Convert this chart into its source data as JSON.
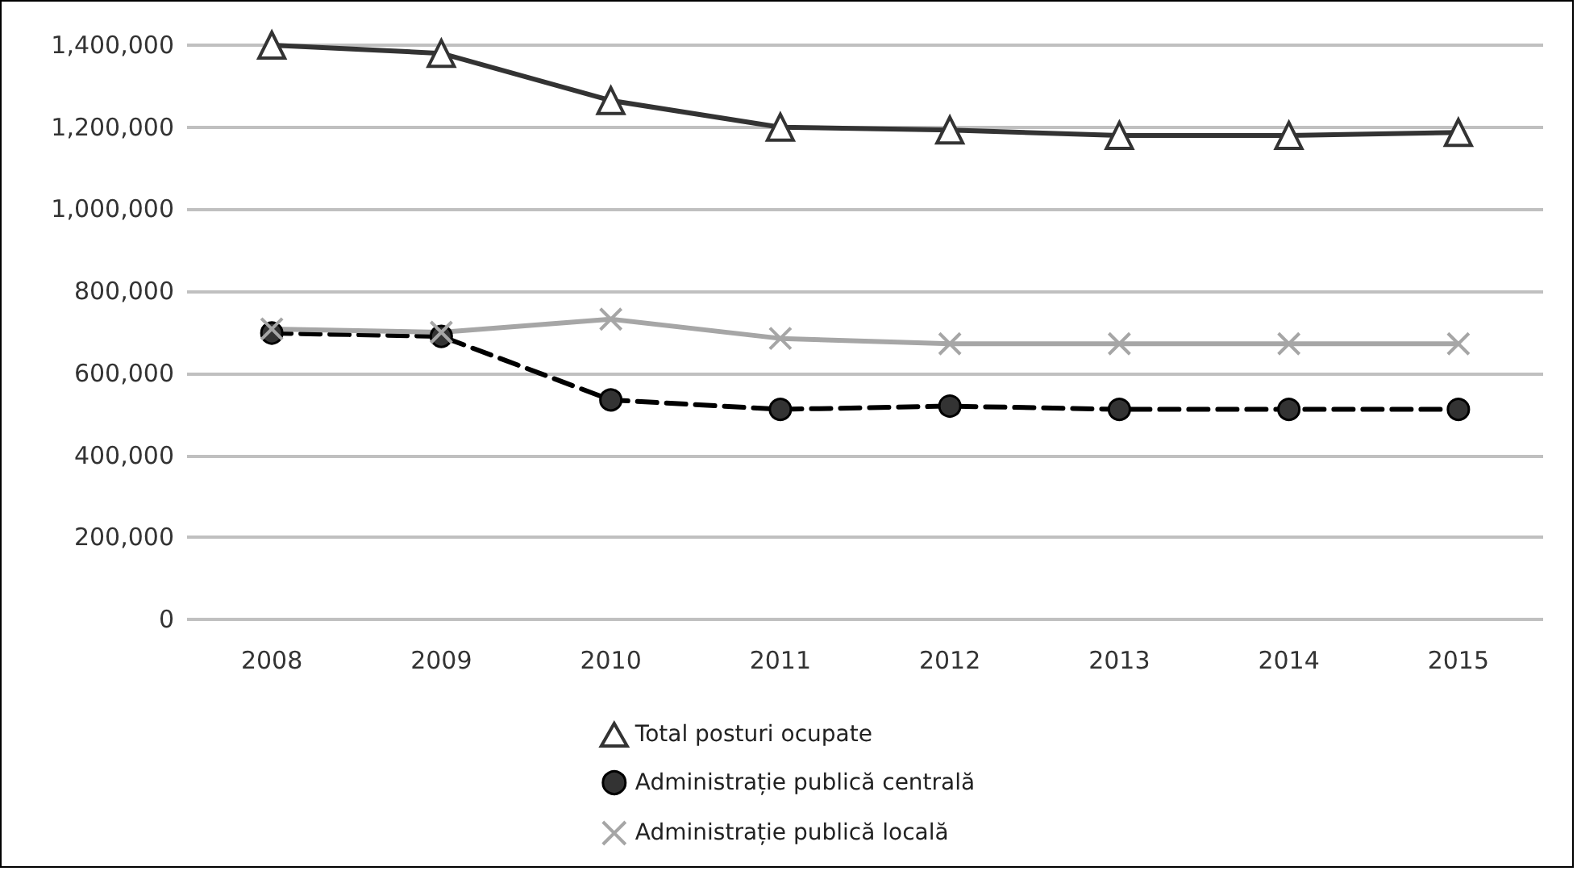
{
  "chart_data": {
    "type": "line",
    "categories": [
      "2008",
      "2009",
      "2010",
      "2011",
      "2012",
      "2013",
      "2014",
      "2015"
    ],
    "series": [
      {
        "name": "Total posturi ocupate",
        "color": "#333333",
        "marker": "triangle",
        "line_style": "solid",
        "values": [
          1400000,
          1380000,
          1265000,
          1200000,
          1193000,
          1180000,
          1180000,
          1187000
        ]
      },
      {
        "name": "Administrație publică centrală",
        "color": "#000000",
        "marker": "circle",
        "line_style": "dashed",
        "values": [
          698000,
          690000,
          535000,
          512000,
          520000,
          512000,
          512000,
          512000
        ]
      },
      {
        "name": "Administrație publică locală",
        "color": "#a6a6a6",
        "marker": "cross",
        "line_style": "solid",
        "values": [
          708000,
          700000,
          732000,
          685000,
          672000,
          672000,
          672000,
          672000
        ]
      }
    ],
    "ylim": [
      0,
      1400000
    ],
    "yticks": [
      {
        "value": 0,
        "label": "0"
      },
      {
        "value": 200000,
        "label": "200,000"
      },
      {
        "value": 400000,
        "label": "400,000"
      },
      {
        "value": 600000,
        "label": "600,000"
      },
      {
        "value": 800000,
        "label": "800,000"
      },
      {
        "value": 1000000,
        "label": "1,000,000"
      },
      {
        "value": 1200000,
        "label": "1,200,000"
      },
      {
        "value": 1400000,
        "label": "1,400,000"
      }
    ],
    "grid": "y",
    "legend": "bottom"
  }
}
